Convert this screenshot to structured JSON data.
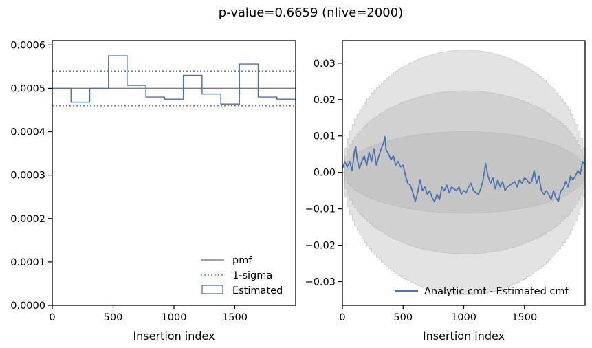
{
  "figure": {
    "suptitle": "p-value=0.6659 (nlive=2000)"
  },
  "colors": {
    "estimated": "#4c72b0",
    "pmf": "#808080",
    "bands": "#b0b0b0"
  },
  "chart_data": [
    {
      "type": "line",
      "name": "left",
      "xlabel": "Insertion index",
      "ylabel": "",
      "xlim": [
        0,
        2000
      ],
      "ylim": [
        0,
        0.00061
      ],
      "xticks": [
        "0",
        "500",
        "1000",
        "1500"
      ],
      "xtick_values": [
        0,
        500,
        1000,
        1500
      ],
      "yticks": [
        "0.0000",
        "0.0001",
        "0.0002",
        "0.0003",
        "0.0004",
        "0.0005",
        "0.0006"
      ],
      "ytick_values": [
        0,
        0.0001,
        0.0002,
        0.0003,
        0.0004,
        0.0005,
        0.0006
      ],
      "legend": {
        "placement": "lower-right",
        "entries": [
          "pmf",
          "1-sigma",
          "Estimated"
        ]
      },
      "pmf": 0.0005,
      "sigma_lines": [
        0.00054,
        0.00046
      ],
      "hist_edges": [
        0,
        154,
        308,
        462,
        615,
        769,
        923,
        1077,
        1231,
        1385,
        1538,
        1692,
        1846,
        2000
      ],
      "hist_values": [
        0.0005,
        0.000468,
        0.0005,
        0.000575,
        0.000507,
        0.00048,
        0.000475,
        0.00053,
        0.000487,
        0.000464,
        0.000556,
        0.00048,
        0.000475
      ]
    },
    {
      "type": "line",
      "name": "right",
      "xlabel": "Insertion index",
      "ylabel": "",
      "xlim": [
        0,
        2000
      ],
      "ylim": [
        -0.0365,
        0.0362
      ],
      "xticks": [
        "0",
        "500",
        "1000",
        "1500"
      ],
      "xtick_values": [
        0,
        500,
        1000,
        1500
      ],
      "yticks": [
        "0.03",
        "0.02",
        "0.01",
        "0.00",
        "−0.01",
        "−0.02",
        "−0.03"
      ],
      "ytick_values": [
        0.03,
        0.02,
        0.01,
        0,
        -0.01,
        -0.02,
        -0.03
      ],
      "legend": {
        "placement": "lower-right",
        "entries": [
          "Analytic cmf - Estimated cmf"
        ]
      },
      "bands_max": [
        0.0112,
        0.0224,
        0.0336
      ],
      "series": [
        {
          "name": "Analytic cmf - Estimated cmf",
          "x": [
            0,
            20,
            40,
            60,
            80,
            100,
            110,
            120,
            140,
            160,
            180,
            200,
            220,
            240,
            260,
            280,
            300,
            320,
            340,
            350,
            360,
            380,
            400,
            420,
            440,
            460,
            480,
            500,
            520,
            540,
            560,
            580,
            600,
            620,
            640,
            660,
            680,
            700,
            720,
            740,
            760,
            780,
            800,
            820,
            840,
            860,
            880,
            900,
            920,
            940,
            960,
            980,
            1000,
            1020,
            1040,
            1060,
            1080,
            1100,
            1120,
            1140,
            1160,
            1180,
            1200,
            1220,
            1240,
            1260,
            1280,
            1300,
            1320,
            1340,
            1360,
            1380,
            1400,
            1420,
            1440,
            1460,
            1480,
            1500,
            1520,
            1540,
            1560,
            1580,
            1600,
            1620,
            1640,
            1660,
            1680,
            1700,
            1720,
            1740,
            1760,
            1780,
            1800,
            1820,
            1840,
            1860,
            1880,
            1900,
            1920,
            1940,
            1960,
            1980,
            2000
          ],
          "y": [
            0.001,
            0.003,
            0.0015,
            0.003,
            0.0005,
            0.006,
            0.007,
            0.004,
            0.001,
            0.003,
            0.0045,
            0.002,
            0.0055,
            0.003,
            0.0065,
            0.002,
            0.0045,
            0.0065,
            0.0082,
            0.0098,
            0.0062,
            0.005,
            0.0035,
            0.0045,
            0.002,
            0.003,
            0.0015,
            0.002,
            -0.001,
            -0.003,
            -0.0035,
            -0.0055,
            -0.008,
            -0.0055,
            -0.002,
            -0.005,
            -0.004,
            -0.006,
            -0.005,
            -0.007,
            -0.008,
            -0.006,
            -0.0075,
            -0.004,
            -0.005,
            -0.0035,
            -0.0055,
            -0.004,
            -0.0045,
            -0.005,
            -0.004,
            -0.006,
            -0.005,
            -0.0055,
            -0.004,
            -0.003,
            -0.005,
            -0.0055,
            -0.006,
            -0.0045,
            -0.002,
            0.0025,
            -0.001,
            -0.003,
            -0.0015,
            -0.0045,
            -0.002,
            -0.004,
            -0.0025,
            -0.005,
            -0.004,
            -0.0035,
            -0.003,
            -0.0025,
            -0.004,
            -0.002,
            -0.003,
            -0.0015,
            -0.002,
            -0.003,
            -0.0025,
            0.0005,
            -0.003,
            -0.001,
            -0.005,
            -0.006,
            -0.005,
            -0.006,
            -0.0075,
            -0.005,
            -0.007,
            -0.008,
            -0.005,
            -0.0045,
            -0.0025,
            -0.004,
            -0.001,
            -0.002,
            -0.001,
            0.0005,
            -0.0005,
            0.003,
            0.002
          ]
        }
      ]
    }
  ]
}
